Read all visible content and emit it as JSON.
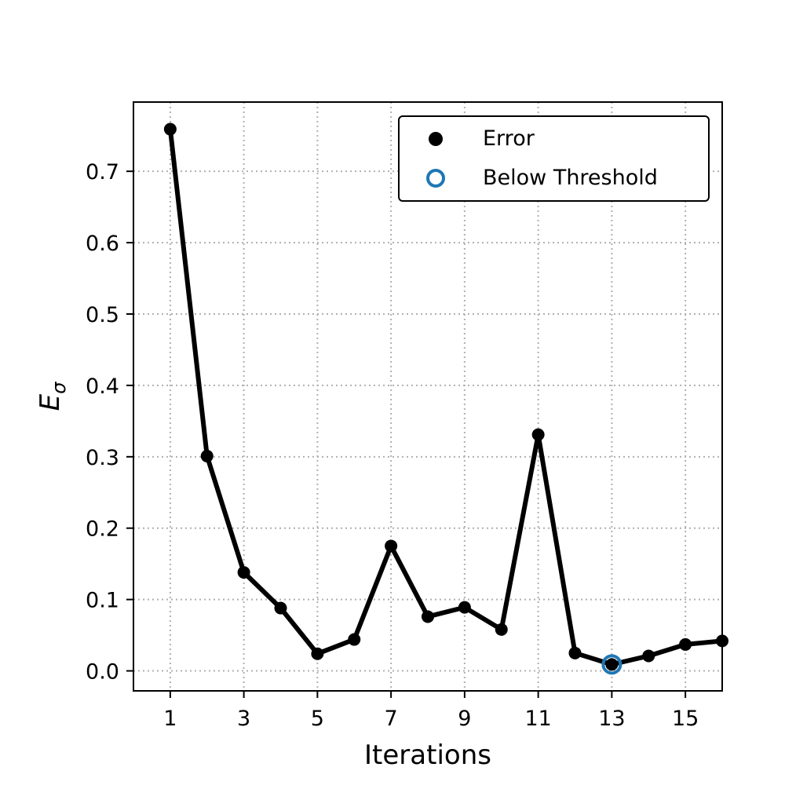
{
  "chart_data": {
    "type": "line",
    "xlabel": "Iterations",
    "ylabel": {
      "main": "E",
      "sub": "σ"
    },
    "xlim": [
      0,
      16
    ],
    "ylim": [
      -0.028,
      0.797
    ],
    "x_ticks": [
      1,
      3,
      5,
      7,
      9,
      11,
      13,
      15
    ],
    "y_ticks": [
      0.0,
      0.1,
      0.2,
      0.3,
      0.4,
      0.5,
      0.6,
      0.7
    ],
    "x_tick_labels": [
      "1",
      "3",
      "5",
      "7",
      "9",
      "11",
      "13",
      "15"
    ],
    "y_tick_labels": [
      "0.0",
      "0.1",
      "0.2",
      "0.3",
      "0.4",
      "0.5",
      "0.6",
      "0.7"
    ],
    "grid": true,
    "legend_position": "top-right",
    "series": [
      {
        "name": "Error",
        "color": "#000000",
        "marker": "filled-circle",
        "x": [
          1,
          2,
          3,
          4,
          5,
          6,
          7,
          8,
          9,
          10,
          11,
          12,
          13,
          14,
          15,
          16
        ],
        "y": [
          0.759,
          0.301,
          0.138,
          0.088,
          0.024,
          0.044,
          0.175,
          0.076,
          0.089,
          0.058,
          0.331,
          0.025,
          0.009,
          0.021,
          0.037,
          0.042
        ]
      },
      {
        "name": "Below Threshold",
        "color": "#1f77b4",
        "marker": "open-circle",
        "x": [
          13
        ],
        "y": [
          0.009
        ]
      }
    ]
  }
}
